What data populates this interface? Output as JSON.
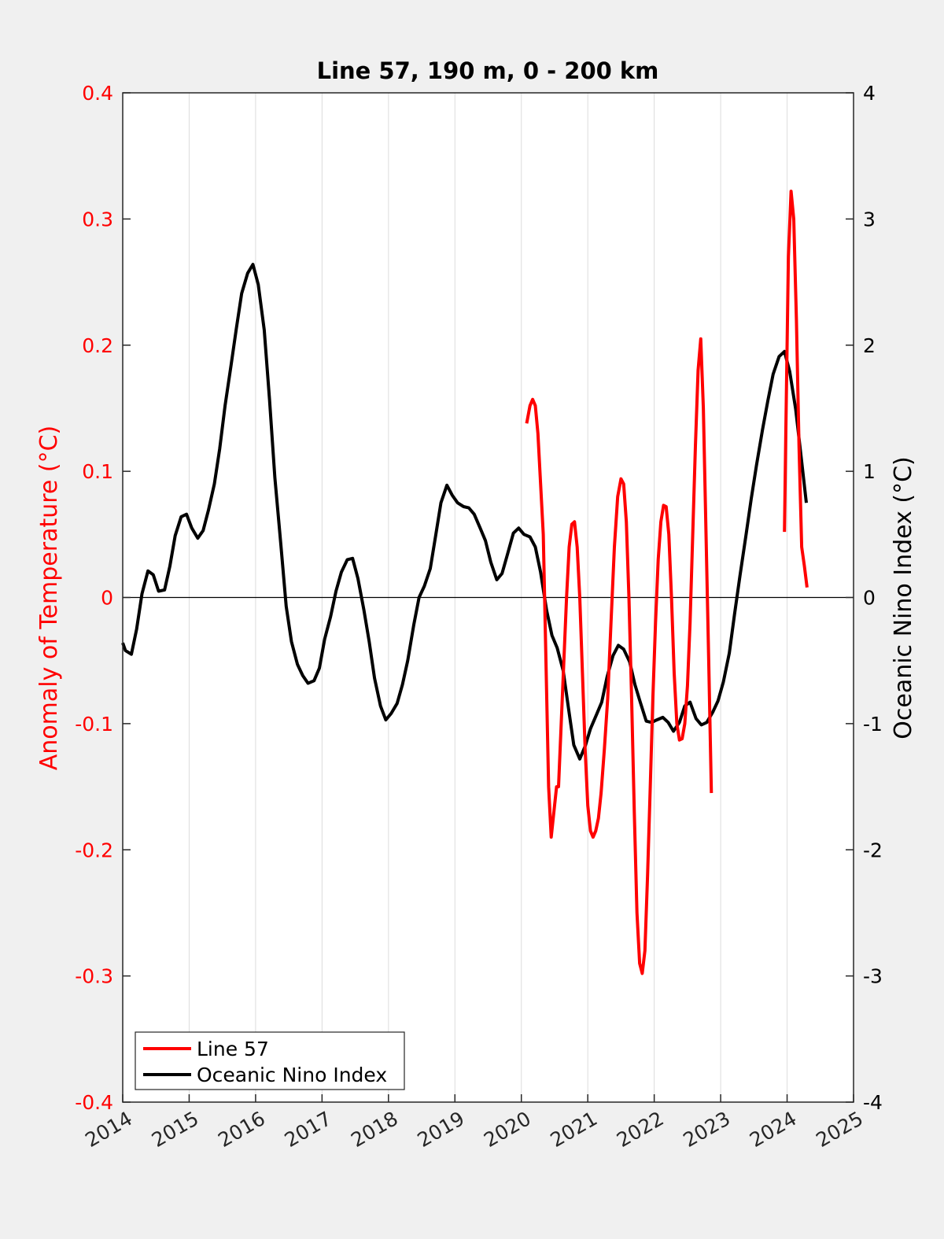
{
  "chart_data": {
    "type": "line",
    "title": "Line 57, 190 m, 0 - 200 km",
    "ylabel_left": "Anomaly of Temperature (°C)",
    "ylabel_right": "Oceanic Nino Index (°C)",
    "xlim": [
      2014,
      2025
    ],
    "ylim_left": [
      -0.4,
      0.4
    ],
    "ylim_right": [
      -4,
      4
    ],
    "x_ticks": [
      "2014",
      "2015",
      "2016",
      "2017",
      "2018",
      "2019",
      "2020",
      "2021",
      "2022",
      "2023",
      "2024",
      "2025"
    ],
    "y_left_ticks": [
      "-0.4",
      "-0.3",
      "-0.2",
      "-0.1",
      "0",
      "0.1",
      "0.2",
      "0.3",
      "0.4"
    ],
    "y_right_ticks": [
      "-4",
      "-3",
      "-2",
      "-1",
      "0",
      "1",
      "2",
      "3",
      "4"
    ],
    "grid": "vertical",
    "legend_position": "bottom-left",
    "colors": {
      "line57": "#ff0000",
      "oni": "#000000",
      "left_axis": "#ff0000",
      "right_axis": "#000000"
    },
    "series": [
      {
        "name": "Line 57",
        "axis": "left",
        "segments": [
          [
            [
              2020.08,
              0.138
            ],
            [
              2020.13,
              0.152
            ],
            [
              2020.17,
              0.157
            ],
            [
              2020.21,
              0.152
            ],
            [
              2020.25,
              0.13
            ],
            [
              2020.29,
              0.09
            ],
            [
              2020.33,
              0.05
            ],
            [
              2020.37,
              -0.05
            ],
            [
              2020.41,
              -0.15
            ],
            [
              2020.45,
              -0.19
            ],
            [
              2020.49,
              -0.17
            ],
            [
              2020.53,
              -0.15
            ],
            [
              2020.56,
              -0.15
            ],
            [
              2020.6,
              -0.1
            ],
            [
              2020.64,
              -0.05
            ],
            [
              2020.68,
              0
            ],
            [
              2020.72,
              0.04
            ],
            [
              2020.76,
              0.058
            ],
            [
              2020.8,
              0.06
            ],
            [
              2020.84,
              0.04
            ],
            [
              2020.88,
              0
            ],
            [
              2020.92,
              -0.06
            ],
            [
              2020.96,
              -0.12
            ],
            [
              2021.0,
              -0.165
            ],
            [
              2021.04,
              -0.185
            ],
            [
              2021.08,
              -0.19
            ],
            [
              2021.12,
              -0.185
            ],
            [
              2021.16,
              -0.175
            ],
            [
              2021.2,
              -0.155
            ],
            [
              2021.25,
              -0.12
            ],
            [
              2021.3,
              -0.08
            ],
            [
              2021.35,
              -0.02
            ],
            [
              2021.4,
              0.04
            ],
            [
              2021.45,
              0.08
            ],
            [
              2021.5,
              0.094
            ],
            [
              2021.54,
              0.09
            ],
            [
              2021.58,
              0.06
            ],
            [
              2021.62,
              0
            ],
            [
              2021.66,
              -0.08
            ],
            [
              2021.7,
              -0.17
            ],
            [
              2021.74,
              -0.25
            ],
            [
              2021.78,
              -0.29
            ],
            [
              2021.82,
              -0.298
            ],
            [
              2021.86,
              -0.28
            ],
            [
              2021.9,
              -0.22
            ],
            [
              2021.94,
              -0.15
            ],
            [
              2021.98,
              -0.08
            ],
            [
              2022.02,
              -0.02
            ],
            [
              2022.06,
              0.03
            ],
            [
              2022.1,
              0.06
            ],
            [
              2022.14,
              0.073
            ],
            [
              2022.18,
              0.072
            ],
            [
              2022.22,
              0.05
            ],
            [
              2022.26,
              0
            ],
            [
              2022.3,
              -0.06
            ],
            [
              2022.34,
              -0.1
            ],
            [
              2022.38,
              -0.113
            ],
            [
              2022.42,
              -0.112
            ],
            [
              2022.46,
              -0.1
            ],
            [
              2022.5,
              -0.07
            ],
            [
              2022.54,
              -0.02
            ],
            [
              2022.58,
              0.05
            ],
            [
              2022.62,
              0.12
            ],
            [
              2022.66,
              0.18
            ],
            [
              2022.7,
              0.205
            ],
            [
              2022.74,
              0.15
            ],
            [
              2022.78,
              0.05
            ],
            [
              2022.82,
              -0.05
            ],
            [
              2022.86,
              -0.155
            ]
          ],
          [
            [
              2023.96,
              0.052
            ],
            [
              2023.98,
              0.13
            ],
            [
              2024.02,
              0.27
            ],
            [
              2024.06,
              0.322
            ],
            [
              2024.1,
              0.3
            ],
            [
              2024.14,
              0.22
            ],
            [
              2024.18,
              0.12
            ],
            [
              2024.22,
              0.04
            ],
            [
              2024.26,
              0.025
            ],
            [
              2024.3,
              0.008
            ]
          ]
        ]
      },
      {
        "name": "Oceanic Nino Index",
        "axis": "right",
        "segments": [
          [
            [
              2014.0,
              -0.36
            ],
            [
              2014.04,
              -0.42
            ],
            [
              2014.13,
              -0.45
            ],
            [
              2014.21,
              -0.25
            ],
            [
              2014.29,
              0.03
            ],
            [
              2014.38,
              0.21
            ],
            [
              2014.46,
              0.18
            ],
            [
              2014.54,
              0.05
            ],
            [
              2014.63,
              0.06
            ],
            [
              2014.71,
              0.25
            ],
            [
              2014.79,
              0.49
            ],
            [
              2014.88,
              0.64
            ],
            [
              2014.96,
              0.66
            ],
            [
              2015.04,
              0.55
            ],
            [
              2015.13,
              0.47
            ],
            [
              2015.21,
              0.53
            ],
            [
              2015.29,
              0.69
            ],
            [
              2015.38,
              0.9
            ],
            [
              2015.46,
              1.18
            ],
            [
              2015.54,
              1.52
            ],
            [
              2015.63,
              1.84
            ],
            [
              2015.71,
              2.13
            ],
            [
              2015.79,
              2.41
            ],
            [
              2015.88,
              2.57
            ],
            [
              2015.96,
              2.64
            ],
            [
              2016.04,
              2.48
            ],
            [
              2016.13,
              2.12
            ],
            [
              2016.21,
              1.57
            ],
            [
              2016.29,
              0.95
            ],
            [
              2016.38,
              0.42
            ],
            [
              2016.46,
              -0.07
            ],
            [
              2016.54,
              -0.35
            ],
            [
              2016.63,
              -0.53
            ],
            [
              2016.71,
              -0.62
            ],
            [
              2016.79,
              -0.68
            ],
            [
              2016.88,
              -0.66
            ],
            [
              2016.96,
              -0.56
            ],
            [
              2017.04,
              -0.33
            ],
            [
              2017.13,
              -0.15
            ],
            [
              2017.21,
              0.05
            ],
            [
              2017.29,
              0.2
            ],
            [
              2017.38,
              0.3
            ],
            [
              2017.46,
              0.31
            ],
            [
              2017.54,
              0.15
            ],
            [
              2017.63,
              -0.1
            ],
            [
              2017.71,
              -0.35
            ],
            [
              2017.79,
              -0.64
            ],
            [
              2017.88,
              -0.86
            ],
            [
              2017.96,
              -0.97
            ],
            [
              2018.04,
              -0.92
            ],
            [
              2018.13,
              -0.84
            ],
            [
              2018.21,
              -0.69
            ],
            [
              2018.29,
              -0.5
            ],
            [
              2018.38,
              -0.22
            ],
            [
              2018.46,
              0
            ],
            [
              2018.54,
              0.09
            ],
            [
              2018.63,
              0.23
            ],
            [
              2018.71,
              0.49
            ],
            [
              2018.79,
              0.75
            ],
            [
              2018.88,
              0.89
            ],
            [
              2018.96,
              0.81
            ],
            [
              2019.04,
              0.75
            ],
            [
              2019.13,
              0.72
            ],
            [
              2019.21,
              0.71
            ],
            [
              2019.29,
              0.66
            ],
            [
              2019.38,
              0.55
            ],
            [
              2019.46,
              0.45
            ],
            [
              2019.54,
              0.28
            ],
            [
              2019.63,
              0.14
            ],
            [
              2019.71,
              0.19
            ],
            [
              2019.79,
              0.34
            ],
            [
              2019.88,
              0.51
            ],
            [
              2019.96,
              0.55
            ],
            [
              2020.04,
              0.5
            ],
            [
              2020.13,
              0.48
            ],
            [
              2020.21,
              0.4
            ],
            [
              2020.29,
              0.2
            ],
            [
              2020.38,
              -0.1
            ],
            [
              2020.46,
              -0.3
            ],
            [
              2020.54,
              -0.4
            ],
            [
              2020.63,
              -0.58
            ],
            [
              2020.71,
              -0.88
            ],
            [
              2020.79,
              -1.17
            ],
            [
              2020.88,
              -1.28
            ],
            [
              2020.96,
              -1.18
            ],
            [
              2021.04,
              -1.04
            ],
            [
              2021.13,
              -0.93
            ],
            [
              2021.21,
              -0.83
            ],
            [
              2021.29,
              -0.63
            ],
            [
              2021.38,
              -0.46
            ],
            [
              2021.46,
              -0.38
            ],
            [
              2021.54,
              -0.41
            ],
            [
              2021.63,
              -0.51
            ],
            [
              2021.71,
              -0.69
            ],
            [
              2021.79,
              -0.83
            ],
            [
              2021.88,
              -0.98
            ],
            [
              2021.96,
              -0.99
            ],
            [
              2022.04,
              -0.97
            ],
            [
              2022.13,
              -0.95
            ],
            [
              2022.21,
              -0.99
            ],
            [
              2022.29,
              -1.06
            ],
            [
              2022.38,
              -0.99
            ],
            [
              2022.46,
              -0.86
            ],
            [
              2022.54,
              -0.83
            ],
            [
              2022.63,
              -0.96
            ],
            [
              2022.71,
              -1.01
            ],
            [
              2022.79,
              -0.99
            ],
            [
              2022.88,
              -0.91
            ],
            [
              2022.96,
              -0.82
            ],
            [
              2023.04,
              -0.67
            ],
            [
              2023.13,
              -0.44
            ],
            [
              2023.21,
              -0.13
            ],
            [
              2023.29,
              0.17
            ],
            [
              2023.38,
              0.49
            ],
            [
              2023.46,
              0.78
            ],
            [
              2023.54,
              1.05
            ],
            [
              2023.63,
              1.33
            ],
            [
              2023.71,
              1.56
            ],
            [
              2023.79,
              1.77
            ],
            [
              2023.88,
              1.91
            ],
            [
              2023.96,
              1.95
            ],
            [
              2024.04,
              1.79
            ],
            [
              2024.13,
              1.49
            ],
            [
              2024.21,
              1.12
            ],
            [
              2024.29,
              0.75
            ]
          ]
        ]
      }
    ]
  }
}
